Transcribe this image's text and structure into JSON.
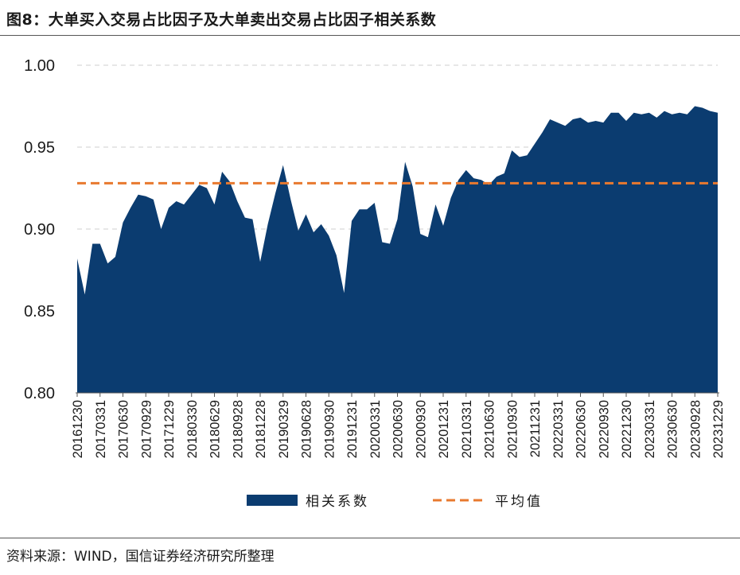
{
  "header": {
    "title": "图8：大单买入交易占比因子及大单卖出交易占比因子相关系数"
  },
  "footer": {
    "source": "资料来源：WIND，国信证券经济研究所整理"
  },
  "colors": {
    "area": "#0b3c70",
    "mean_line": "#e8792f",
    "grid": "#cfcfcf",
    "axis": "#555555"
  },
  "chart_data": {
    "type": "area",
    "title": "图8：大单买入交易占比因子及大单卖出交易占比因子相关系数",
    "xlabel": "",
    "ylabel": "",
    "ylim": [
      0.8,
      1.0
    ],
    "yticks": [
      "0.80",
      "0.85",
      "0.90",
      "0.95",
      "1.00"
    ],
    "grid": true,
    "legend_position": "bottom",
    "x_tick_labels": [
      "20161230",
      "20170331",
      "20170630",
      "20170929",
      "20171229",
      "20180330",
      "20180629",
      "20180928",
      "20181228",
      "20190329",
      "20190628",
      "20190930",
      "20191231",
      "20200331",
      "20200630",
      "20200930",
      "20201231",
      "20210331",
      "20210630",
      "20210930",
      "20211231",
      "20220331",
      "20220630",
      "20220930",
      "20221230",
      "20230331",
      "20230630",
      "20230928",
      "20231229"
    ],
    "series": [
      {
        "name": "相关系数",
        "kind": "area",
        "values": [
          0.882,
          0.86,
          0.891,
          0.891,
          0.879,
          0.883,
          0.904,
          0.913,
          0.921,
          0.92,
          0.918,
          0.9,
          0.913,
          0.917,
          0.915,
          0.921,
          0.927,
          0.925,
          0.915,
          0.935,
          0.929,
          0.917,
          0.907,
          0.906,
          0.88,
          0.903,
          0.922,
          0.939,
          0.918,
          0.899,
          0.909,
          0.898,
          0.903,
          0.896,
          0.884,
          0.861,
          0.905,
          0.912,
          0.912,
          0.916,
          0.892,
          0.891,
          0.906,
          0.941,
          0.926,
          0.897,
          0.895,
          0.915,
          0.902,
          0.919,
          0.93,
          0.936,
          0.931,
          0.93,
          0.927,
          0.932,
          0.934,
          0.948,
          0.944,
          0.945,
          0.952,
          0.959,
          0.967,
          0.965,
          0.963,
          0.967,
          0.968,
          0.965,
          0.966,
          0.965,
          0.971,
          0.971,
          0.966,
          0.971,
          0.97,
          0.971,
          0.968,
          0.972,
          0.97,
          0.971,
          0.97,
          0.975,
          0.974,
          0.972,
          0.971
        ]
      },
      {
        "name": "平均值",
        "kind": "line",
        "value": 0.928
      }
    ]
  }
}
